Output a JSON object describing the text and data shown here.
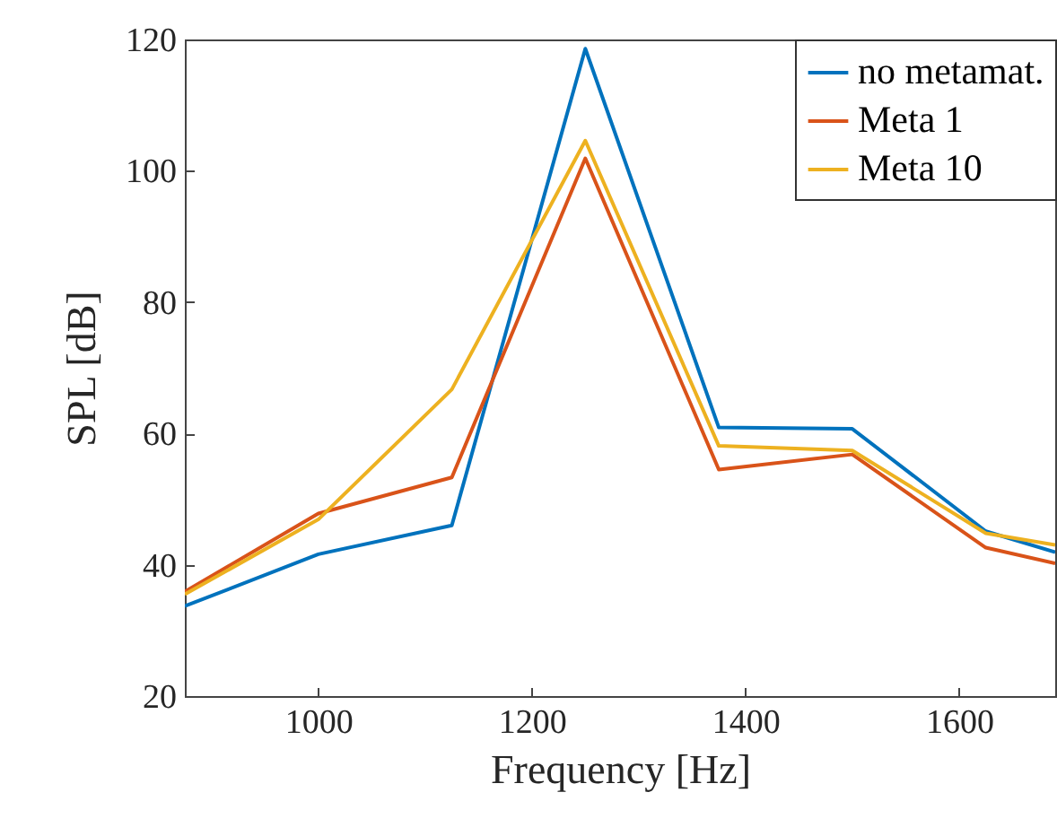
{
  "chart_data": {
    "type": "line",
    "xlabel": "Frequency [Hz]",
    "ylabel": "SPL [dB]",
    "x": [
      875,
      1000,
      1125,
      1250,
      1375,
      1500,
      1625,
      1690
    ],
    "xlim": [
      875,
      1690
    ],
    "xticks": [
      1000,
      1200,
      1400,
      1600
    ],
    "ylim": [
      20,
      120
    ],
    "yticks": [
      20,
      40,
      60,
      80,
      100,
      120
    ],
    "grid": false,
    "legend": "top right",
    "marker": "none",
    "line_style": "solid",
    "series": [
      {
        "name": "no metamat.",
        "color": "#0072bd",
        "values": [
          33.7,
          41.6,
          46.0,
          118.6,
          60.9,
          60.7,
          45.1,
          41.9
        ]
      },
      {
        "name": "Meta 1",
        "color": "#d95319",
        "values": [
          35.9,
          47.8,
          53.3,
          101.9,
          54.5,
          56.8,
          42.6,
          40.2
        ]
      },
      {
        "name": "Meta 10",
        "color": "#edb120",
        "values": [
          35.5,
          46.9,
          66.7,
          104.6,
          58.1,
          57.4,
          44.8,
          43.0
        ]
      }
    ]
  }
}
